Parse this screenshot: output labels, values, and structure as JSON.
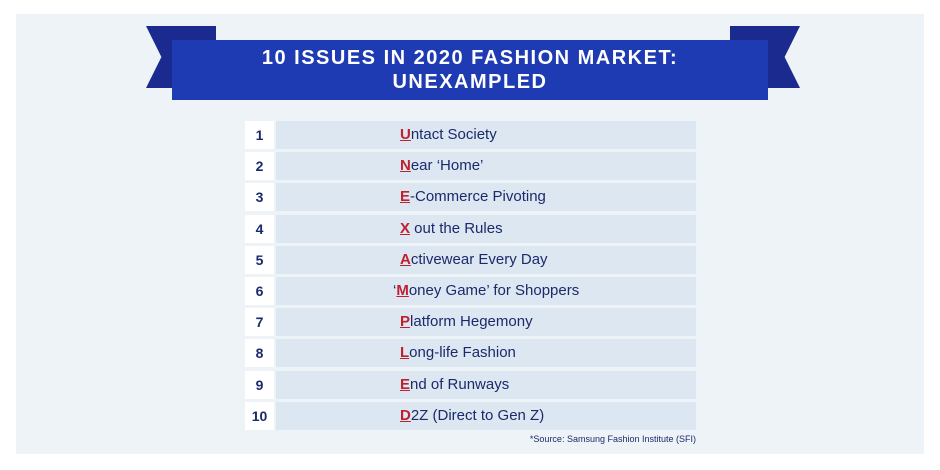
{
  "header": {
    "title_line1": "10 ISSUES IN 2020 FASHION MARKET:",
    "title_line2": "UNEXAMPLED"
  },
  "issues": [
    {
      "num": "1",
      "prefix": "",
      "initial": "U",
      "rest": "ntact Society"
    },
    {
      "num": "2",
      "prefix": "",
      "initial": "N",
      "rest": "ear ‘Home’"
    },
    {
      "num": "3",
      "prefix": "",
      "initial": "E",
      "rest": "-Commerce Pivoting"
    },
    {
      "num": "4",
      "prefix": "",
      "initial": "X",
      "rest": " out the Rules"
    },
    {
      "num": "5",
      "prefix": "",
      "initial": "A",
      "rest": "ctivewear Every Day"
    },
    {
      "num": "6",
      "prefix": "‘",
      "initial": "M",
      "rest": "oney Game’ for Shoppers"
    },
    {
      "num": "7",
      "prefix": "",
      "initial": "P",
      "rest": "latform Hegemony"
    },
    {
      "num": "8",
      "prefix": "",
      "initial": "L",
      "rest": "ong-life Fashion"
    },
    {
      "num": "9",
      "prefix": "",
      "initial": "E",
      "rest": "nd of Runways"
    },
    {
      "num": "10",
      "prefix": "",
      "initial": "D",
      "rest": "2Z (Direct to Gen Z)"
    }
  ],
  "source": "*Source: Samsung Fashion Institute (SFI)",
  "colors": {
    "banner": "#1f3bb3",
    "banner_tail": "#1a2a8f",
    "accent_initial": "#c0202e",
    "text": "#1b2a6b",
    "row_bg": "#dce7f1",
    "panel_bg": "#eef3f8"
  }
}
